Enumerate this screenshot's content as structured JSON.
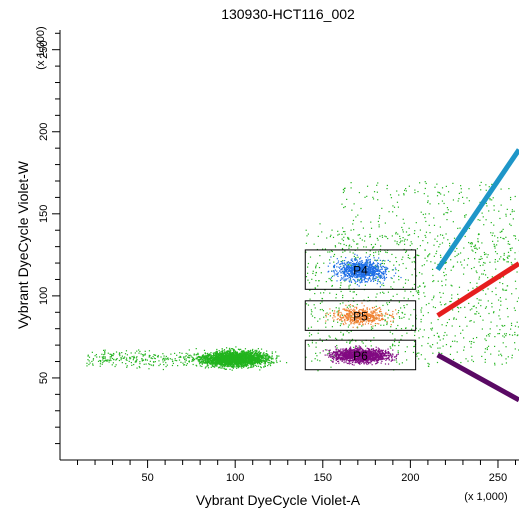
{
  "chart_data": {
    "type": "scatter",
    "title": "130930-HCT116_002",
    "xlabel": "Vybrant DyeCycle Violet-A",
    "ylabel": "Vybrant DyeCycle Violet-W",
    "x_scale_note": "(x 1,000)",
    "y_scale_note": "(x 1,000)",
    "xlim": [
      0,
      262
    ],
    "ylim": [
      0,
      262
    ],
    "x_ticks": [
      50,
      100,
      150,
      200,
      250
    ],
    "y_ticks": [
      50,
      100,
      150,
      200,
      250
    ],
    "grid": false,
    "populations": [
      {
        "name": "main",
        "color": "#22b41e"
      },
      {
        "name": "P4",
        "color": "#1e6ee6"
      },
      {
        "name": "P5",
        "color": "#f08232"
      },
      {
        "name": "P6",
        "color": "#820a82"
      }
    ],
    "gates": [
      {
        "label": "P4",
        "x_range": [
          140,
          203
        ],
        "y_range": [
          104,
          128
        ]
      },
      {
        "label": "P5",
        "x_range": [
          140,
          203
        ],
        "y_range": [
          79,
          97
        ]
      },
      {
        "label": "P6",
        "x_range": [
          140,
          203
        ],
        "y_range": [
          55,
          73
        ]
      }
    ],
    "indicator_lines": [
      {
        "gate": "P4",
        "color": "#1e96c8"
      },
      {
        "gate": "P5",
        "color": "#e61e1e"
      },
      {
        "gate": "P6",
        "color": "#5a0a64"
      }
    ]
  }
}
